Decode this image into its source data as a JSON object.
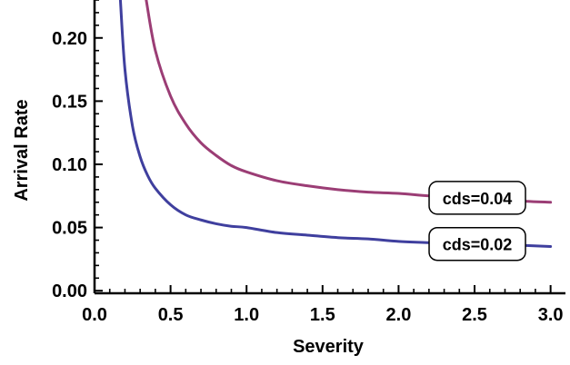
{
  "chart_data": {
    "type": "line",
    "title": "",
    "xlabel": "Severity",
    "ylabel": "Arrival Rate",
    "xlim": [
      0,
      3.05
    ],
    "ylim": [
      -0.002,
      0.23
    ],
    "x_ticks": [
      0.0,
      0.5,
      1.0,
      1.5,
      2.0,
      2.5,
      3.0
    ],
    "x_tick_labels": [
      "0.0",
      "0.5",
      "1.0",
      "1.5",
      "2.0",
      "2.5",
      "3.0"
    ],
    "y_ticks": [
      0.0,
      0.05,
      0.1,
      0.15,
      0.2
    ],
    "y_tick_labels": [
      "0.00",
      "0.05",
      "0.10",
      "0.15",
      "0.20"
    ],
    "grid": false,
    "legend": "none",
    "series": [
      {
        "name": "cds=0.04",
        "color": "#9b3d75",
        "x": [
          0.34,
          0.4,
          0.5,
          0.6,
          0.7,
          0.8,
          0.9,
          1.0,
          1.2,
          1.4,
          1.6,
          1.8,
          2.0,
          2.2,
          2.4,
          2.6,
          2.8,
          3.0
        ],
        "y": [
          0.23,
          0.19,
          0.154,
          0.132,
          0.117,
          0.107,
          0.099,
          0.094,
          0.087,
          0.083,
          0.08,
          0.078,
          0.077,
          0.075,
          0.074,
          0.073,
          0.071,
          0.07
        ]
      },
      {
        "name": "cds=0.02",
        "color": "#3f3f9e",
        "x": [
          0.17,
          0.2,
          0.25,
          0.3,
          0.35,
          0.4,
          0.5,
          0.6,
          0.7,
          0.8,
          0.9,
          1.0,
          1.2,
          1.4,
          1.6,
          1.8,
          2.0,
          2.2,
          2.4,
          2.6,
          2.8,
          3.0
        ],
        "y": [
          0.23,
          0.175,
          0.13,
          0.106,
          0.091,
          0.081,
          0.068,
          0.06,
          0.056,
          0.053,
          0.051,
          0.05,
          0.046,
          0.044,
          0.042,
          0.041,
          0.039,
          0.038,
          0.037,
          0.037,
          0.036,
          0.035
        ]
      }
    ],
    "annotations": [
      {
        "text": "cds=0.04",
        "series": 0,
        "x": 2.5
      },
      {
        "text": "cds=0.02",
        "series": 1,
        "x": 2.5
      }
    ]
  }
}
